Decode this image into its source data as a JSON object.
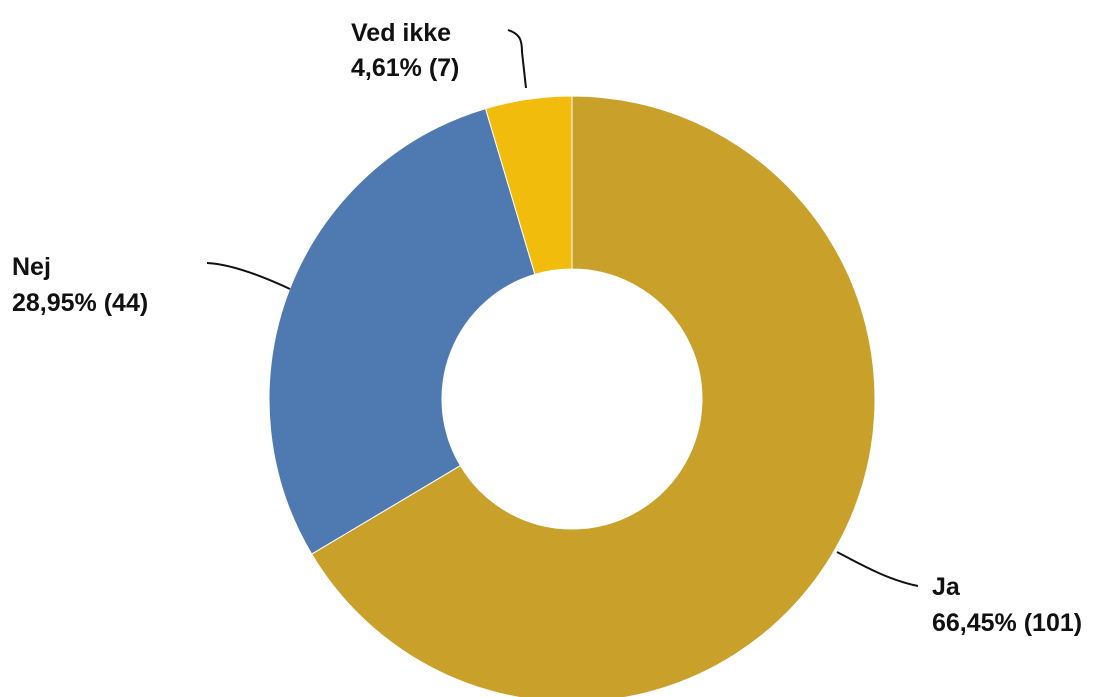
{
  "chart_data": {
    "type": "pie",
    "variant": "donut",
    "slices": [
      {
        "label": "Ja",
        "value": 101,
        "percent_label": "66,45% (101)",
        "color": "#C9A02A"
      },
      {
        "label": "Nej",
        "value": 44,
        "percent_label": "28,95% (44)",
        "color": "#4E79B1"
      },
      {
        "label": "Ved ikke",
        "value": 7,
        "percent_label": "4,61% (7)",
        "color": "#F2BC0C"
      }
    ],
    "start_angle": "12 o'clock",
    "direction": "clockwise",
    "legend": "none"
  }
}
